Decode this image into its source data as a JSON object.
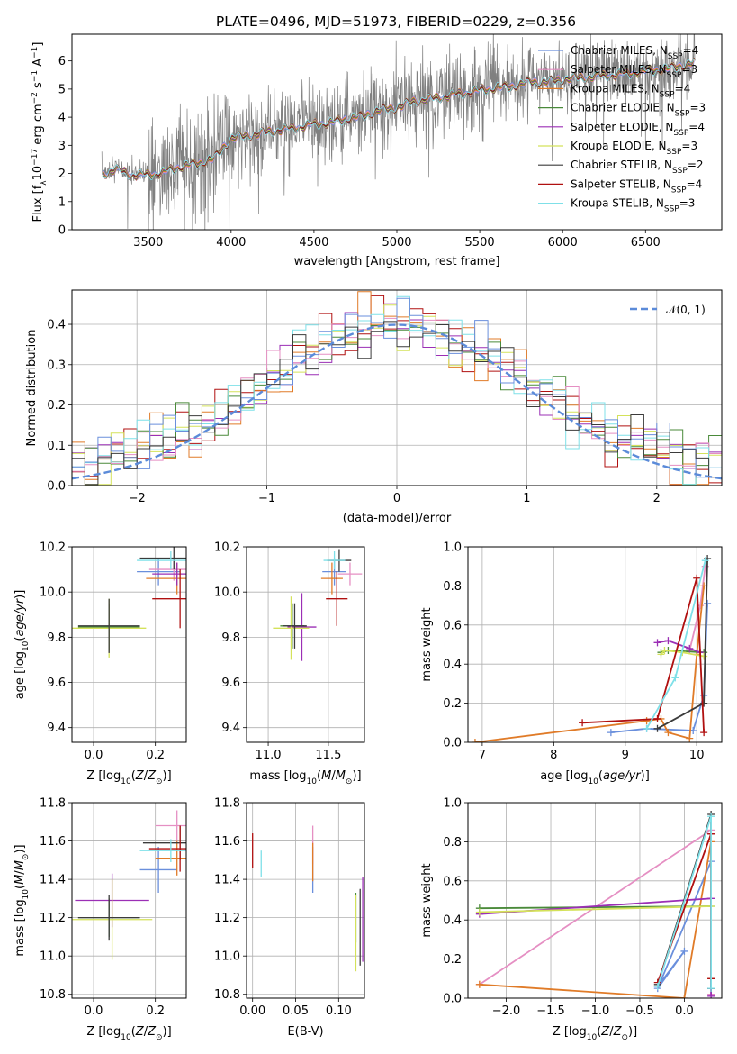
{
  "figure": {
    "title": "PLATE=0496, MJD=51973, FIBERID=0229, z=0.356"
  },
  "chart_data": [
    {
      "id": "spectrum",
      "type": "line",
      "title": "PLATE=0496, MJD=51973, FIBERID=0229, z=0.356",
      "xlabel": "wavelength [Angstrom, rest frame]",
      "ylabel": "Flux [f_λ 10^-17 erg cm^-2 s^-1 A^-1]",
      "xlim": [
        3040,
        6960
      ],
      "ylim": [
        0,
        6.95
      ],
      "xticks": [
        3500,
        4000,
        4500,
        5000,
        5500,
        6000,
        6500
      ],
      "yticks": [
        0,
        1,
        2,
        3,
        4,
        5,
        6
      ],
      "data_color": "#808080",
      "legend_position": "upper right",
      "model_continuum": {
        "x": [
          3220,
          3300,
          3400,
          3500,
          3600,
          3700,
          3800,
          3900,
          4000,
          4100,
          4200,
          4300,
          4400,
          4500,
          4600,
          4700,
          4800,
          4900,
          5000,
          5100,
          5200,
          5300,
          5400,
          5500,
          5600,
          5700,
          5800,
          5900,
          6000,
          6100,
          6200,
          6300,
          6400,
          6500,
          6600,
          6700,
          6800
        ],
        "y": [
          2.0,
          2.2,
          2.0,
          2.0,
          2.1,
          2.3,
          2.4,
          2.6,
          3.3,
          3.4,
          3.5,
          3.6,
          3.7,
          3.8,
          3.85,
          4.0,
          4.1,
          4.3,
          4.4,
          4.6,
          4.7,
          4.8,
          4.9,
          5.0,
          5.1,
          5.15,
          5.3,
          5.3,
          5.4,
          5.45,
          5.5,
          5.55,
          5.6,
          5.7,
          5.75,
          5.85,
          6.0
        ]
      },
      "series": [
        {
          "name": "Chabrier MILES, N_SSP=4",
          "color": "#6a8fdc"
        },
        {
          "name": "Salpeter MILES, N_SSP=3",
          "color": "#e58fc3"
        },
        {
          "name": "Kroupa MILES, N_SSP=4",
          "color": "#e07b28"
        },
        {
          "name": "Chabrier ELODIE, N_SSP=3",
          "color": "#4a8a3a"
        },
        {
          "name": "Salpeter ELODIE, N_SSP=4",
          "color": "#9b2fb5"
        },
        {
          "name": "Kroupa ELODIE, N_SSP=3",
          "color": "#d4e25a"
        },
        {
          "name": "Chabrier STELIB, N_SSP=2",
          "color": "#3b3b3b"
        },
        {
          "name": "Salpeter STELIB, N_SSP=4",
          "color": "#b01010"
        },
        {
          "name": "Kroupa STELIB, N_SSP=3",
          "color": "#7fe0e8"
        }
      ]
    },
    {
      "id": "residuals",
      "type": "histogram",
      "xlabel": "(data-model)/error",
      "ylabel": "Normed distribution",
      "xlim": [
        -2.5,
        2.5
      ],
      "ylim": [
        0,
        0.485
      ],
      "xticks": [
        -2,
        -1,
        0,
        1,
        2
      ],
      "yticks": [
        0.0,
        0.1,
        0.2,
        0.3,
        0.4
      ],
      "grid": true,
      "legend_position": "upper right",
      "reference": {
        "name": "𝒩(0, 1)",
        "color": "#5b8bd9",
        "mean": 0,
        "sigma": 1
      },
      "bins": 50
    },
    {
      "id": "age_vs_Z",
      "type": "errorbar",
      "xlabel": "Z [log10(Z/Z☉)]",
      "ylabel": "age  [log10(age/yr)]",
      "xlim": [
        -0.07,
        0.3
      ],
      "ylim": [
        9.335,
        10.2
      ],
      "xticks": [
        0.0,
        0.2
      ],
      "yticks": [
        9.4,
        9.6,
        9.8,
        10.0,
        10.2
      ],
      "points": [
        {
          "s": 0,
          "x": 0.21,
          "xerr": 0.07,
          "y": 10.09,
          "yerr": 0.06
        },
        {
          "s": 1,
          "x": 0.26,
          "xerr": 0.08,
          "y": 10.1,
          "yerr": 0.05
        },
        {
          "s": 2,
          "x": 0.27,
          "xerr": 0.1,
          "y": 10.06,
          "yerr": 0.07
        },
        {
          "s": 3,
          "x": 0.05,
          "xerr": 0.1,
          "y": 9.845,
          "yerr": 0.1
        },
        {
          "s": 4,
          "x": 0.27,
          "xerr": 0.08,
          "y": 10.08,
          "yerr": 0.05
        },
        {
          "s": 5,
          "x": 0.05,
          "xerr": 0.12,
          "y": 9.84,
          "yerr": 0.13
        },
        {
          "s": 6,
          "x": 0.26,
          "xerr": 0.11,
          "y": 10.15,
          "yerr": 0.05
        },
        {
          "s": 7,
          "x": 0.28,
          "xerr": 0.09,
          "y": 9.97,
          "yerr": 0.13
        },
        {
          "s": 8,
          "x": 0.25,
          "xerr": 0.11,
          "y": 10.14,
          "yerr": 0.04
        },
        {
          "s": 6,
          "x": 0.05,
          "xerr": 0.1,
          "y": 9.85,
          "yerr": 0.12
        }
      ]
    },
    {
      "id": "age_vs_mass",
      "type": "errorbar",
      "xlabel": "mass [log10(M/M☉)]",
      "ylabel": "",
      "xlim": [
        10.82,
        11.8
      ],
      "ylim": [
        9.335,
        10.2
      ],
      "xticks": [
        11.0,
        11.5
      ],
      "yticks": [
        9.4,
        9.6,
        9.8,
        10.0,
        10.2
      ],
      "points": [
        {
          "s": 0,
          "x": 11.55,
          "xerr": 0.1,
          "y": 10.09,
          "yerr": 0.06
        },
        {
          "s": 1,
          "x": 11.68,
          "xerr": 0.1,
          "y": 10.08,
          "yerr": 0.05
        },
        {
          "s": 2,
          "x": 11.53,
          "xerr": 0.09,
          "y": 10.06,
          "yerr": 0.07
        },
        {
          "s": 3,
          "x": 11.2,
          "xerr": 0.1,
          "y": 9.85,
          "yerr": 0.1
        },
        {
          "s": 4,
          "x": 11.28,
          "xerr": 0.12,
          "y": 9.845,
          "yerr": 0.15
        },
        {
          "s": 5,
          "x": 11.19,
          "xerr": 0.15,
          "y": 9.84,
          "yerr": 0.14
        },
        {
          "s": 6,
          "x": 11.59,
          "xerr": 0.1,
          "y": 10.14,
          "yerr": 0.05
        },
        {
          "s": 7,
          "x": 11.57,
          "xerr": 0.09,
          "y": 9.97,
          "yerr": 0.12
        },
        {
          "s": 8,
          "x": 11.55,
          "xerr": 0.09,
          "y": 10.14,
          "yerr": 0.04
        },
        {
          "s": 6,
          "x": 11.22,
          "xerr": 0.1,
          "y": 9.85,
          "yerr": 0.1
        }
      ]
    },
    {
      "id": "weight_vs_age",
      "type": "line",
      "xlabel": "age  [log10(age/yr)]",
      "ylabel": "mass weight",
      "xlim": [
        6.8,
        10.35
      ],
      "ylim": [
        0,
        1.0
      ],
      "xticks": [
        7,
        8,
        9,
        10
      ],
      "yticks": [
        0.0,
        0.2,
        0.4,
        0.6,
        0.8,
        1.0
      ],
      "grid": true,
      "series": [
        {
          "s": 0,
          "x": [
            8.8,
            9.3,
            9.95,
            10.1,
            10.15
          ],
          "y": [
            0.05,
            0.07,
            0.06,
            0.24,
            0.71
          ]
        },
        {
          "s": 1,
          "x": [
            9.9,
            10.05,
            10.12
          ],
          "y": [
            0.47,
            0.7,
            0.9
          ]
        },
        {
          "s": 2,
          "x": [
            6.9,
            9.3,
            9.5,
            9.6,
            9.9,
            10.0,
            10.1
          ],
          "y": [
            0.0,
            0.11,
            0.12,
            0.05,
            0.02,
            0.45,
            0.8
          ]
        },
        {
          "s": 3,
          "x": [
            9.5,
            9.6,
            10.1
          ],
          "y": [
            0.46,
            0.47,
            0.46
          ]
        },
        {
          "s": 4,
          "x": [
            9.45,
            9.6,
            9.9,
            10.05
          ],
          "y": [
            0.51,
            0.52,
            0.48,
            0.46
          ]
        },
        {
          "s": 5,
          "x": [
            9.5,
            9.55,
            9.8,
            10.1
          ],
          "y": [
            0.45,
            0.47,
            0.46,
            0.44
          ]
        },
        {
          "s": 6,
          "x": [
            9.45,
            10.1,
            10.15
          ],
          "y": [
            0.07,
            0.2,
            0.94
          ]
        },
        {
          "s": 7,
          "x": [
            8.4,
            9.45,
            10.0,
            10.1
          ],
          "y": [
            0.1,
            0.12,
            0.84,
            0.05
          ]
        },
        {
          "s": 8,
          "x": [
            9.3,
            9.7,
            10.12
          ],
          "y": [
            0.07,
            0.33,
            0.93
          ]
        }
      ]
    },
    {
      "id": "mass_vs_Z",
      "type": "errorbar",
      "xlabel": "Z [log10(Z/Z☉)]",
      "ylabel": "mass [log10(M/M☉)]",
      "xlim": [
        -0.07,
        0.3
      ],
      "ylim": [
        10.78,
        11.8
      ],
      "xticks": [
        0.0,
        0.2
      ],
      "yticks": [
        10.8,
        11.0,
        11.2,
        11.4,
        11.6,
        11.8
      ],
      "points": [
        {
          "s": 0,
          "x": 0.21,
          "xerr": 0.06,
          "y": 11.45,
          "yerr": 0.12
        },
        {
          "s": 1,
          "x": 0.27,
          "xerr": 0.07,
          "y": 11.68,
          "yerr": 0.08
        },
        {
          "s": 2,
          "x": 0.27,
          "xerr": 0.07,
          "y": 11.51,
          "yerr": 0.09
        },
        {
          "s": 3,
          "x": 0.05,
          "xerr": 0.1,
          "y": 11.2,
          "yerr": 0.1
        },
        {
          "s": 4,
          "x": 0.06,
          "xerr": 0.12,
          "y": 11.29,
          "yerr": 0.14
        },
        {
          "s": 5,
          "x": 0.06,
          "xerr": 0.13,
          "y": 11.19,
          "yerr": 0.21
        },
        {
          "s": 6,
          "x": 0.28,
          "xerr": 0.12,
          "y": 11.59,
          "yerr": 0.09
        },
        {
          "s": 7,
          "x": 0.28,
          "xerr": 0.1,
          "y": 11.56,
          "yerr": 0.12
        },
        {
          "s": 8,
          "x": 0.25,
          "xerr": 0.1,
          "y": 11.55,
          "yerr": 0.06
        },
        {
          "s": 6,
          "x": 0.05,
          "xerr": 0.1,
          "y": 11.2,
          "yerr": 0.12
        }
      ]
    },
    {
      "id": "mass_vs_EBV",
      "type": "errorbar",
      "xlabel": "E(B-V)",
      "ylabel": "",
      "xlim": [
        -0.007,
        0.13
      ],
      "ylim": [
        10.78,
        11.8
      ],
      "xticks": [
        0.0,
        0.05,
        0.1
      ],
      "yticks": [
        10.8,
        11.0,
        11.2,
        11.4,
        11.6,
        11.8
      ],
      "points": [
        {
          "s": 0,
          "x": 0.07,
          "xerr": 0,
          "y": 11.45,
          "yerr": 0.12
        },
        {
          "s": 1,
          "x": 0.07,
          "xerr": 0,
          "y": 11.58,
          "yerr": 0.1
        },
        {
          "s": 2,
          "x": 0.07,
          "xerr": 0,
          "y": 11.49,
          "yerr": 0.1
        },
        {
          "s": 3,
          "x": 0.12,
          "xerr": 0,
          "y": 11.2,
          "yerr": 0.13
        },
        {
          "s": 4,
          "x": 0.128,
          "xerr": 0,
          "y": 11.19,
          "yerr": 0.22
        },
        {
          "s": 5,
          "x": 0.12,
          "xerr": 0,
          "y": 11.12,
          "yerr": 0.2
        },
        {
          "s": 6,
          "x": 0.125,
          "xerr": 0,
          "y": 11.15,
          "yerr": 0.2
        },
        {
          "s": 7,
          "x": 0.0,
          "xerr": 0,
          "y": 11.55,
          "yerr": 0.09
        },
        {
          "s": 8,
          "x": 0.01,
          "xerr": 0,
          "y": 11.48,
          "yerr": 0.07
        }
      ]
    },
    {
      "id": "weight_vs_Z",
      "type": "line",
      "xlabel": "Z [log10(Z/Z☉)]",
      "ylabel": "mass weight",
      "xlim": [
        -2.43,
        0.42
      ],
      "ylim": [
        0,
        1.0
      ],
      "xticks": [
        -2.0,
        -1.5,
        -1.0,
        -0.5,
        0.0
      ],
      "yticks": [
        0.0,
        0.2,
        0.4,
        0.6,
        0.8,
        1.0
      ],
      "grid": true,
      "series": [
        {
          "s": 0,
          "x": [
            -0.3,
            0.0,
            -0.3,
            0.3,
            0.3
          ],
          "y": [
            0.06,
            0.24,
            0.05,
            0.7,
            0.05
          ]
        },
        {
          "s": 1,
          "x": [
            -2.3,
            0.3,
            0.3
          ],
          "y": [
            0.07,
            0.86,
            0.02
          ]
        },
        {
          "s": 2,
          "x": [
            -2.3,
            0.0,
            0.3,
            0.3
          ],
          "y": [
            0.07,
            0.0,
            0.8,
            0.1
          ]
        },
        {
          "s": 3,
          "x": [
            -2.3,
            0.3
          ],
          "y": [
            0.46,
            0.47
          ]
        },
        {
          "s": 4,
          "x": [
            -2.3,
            0.3,
            0.3
          ],
          "y": [
            0.43,
            0.51,
            0.01
          ]
        },
        {
          "s": 5,
          "x": [
            -2.3,
            0.3
          ],
          "y": [
            0.44,
            0.47
          ]
        },
        {
          "s": 6,
          "x": [
            -0.3,
            0.3,
            0.3
          ],
          "y": [
            0.07,
            0.94,
            0.05
          ]
        },
        {
          "s": 7,
          "x": [
            -0.3,
            0.3,
            0.3,
            0.3
          ],
          "y": [
            0.08,
            0.84,
            0.1,
            0.84
          ]
        },
        {
          "s": 8,
          "x": [
            -0.3,
            0.3,
            0.3
          ],
          "y": [
            0.06,
            0.93,
            0.05
          ]
        }
      ]
    }
  ]
}
